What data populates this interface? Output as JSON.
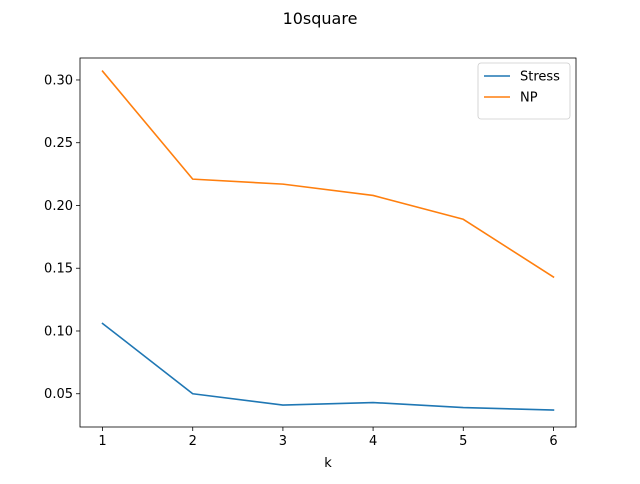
{
  "chart_data": {
    "type": "line",
    "title": "10square",
    "xlabel": "k",
    "ylabel": "",
    "x": [
      1,
      2,
      3,
      4,
      5,
      6
    ],
    "xlim": [
      0.75,
      6.25
    ],
    "ylim": [
      0.0235,
      0.3175
    ],
    "xticks": [
      1,
      2,
      3,
      4,
      5,
      6
    ],
    "xtick_labels": [
      "1",
      "2",
      "3",
      "4",
      "5",
      "6"
    ],
    "yticks": [
      0.05,
      0.1,
      0.15,
      0.2,
      0.25,
      0.3
    ],
    "ytick_labels": [
      "0.05",
      "0.10",
      "0.15",
      "0.20",
      "0.25",
      "0.30"
    ],
    "grid": false,
    "legend_position": "top-right",
    "series": [
      {
        "name": "Stress",
        "color": "#1f77b4",
        "values": [
          0.106,
          0.05,
          0.041,
          0.043,
          0.039,
          0.037
        ]
      },
      {
        "name": "NP",
        "color": "#ff7f0e",
        "values": [
          0.307,
          0.221,
          0.217,
          0.208,
          0.189,
          0.143
        ]
      }
    ]
  }
}
